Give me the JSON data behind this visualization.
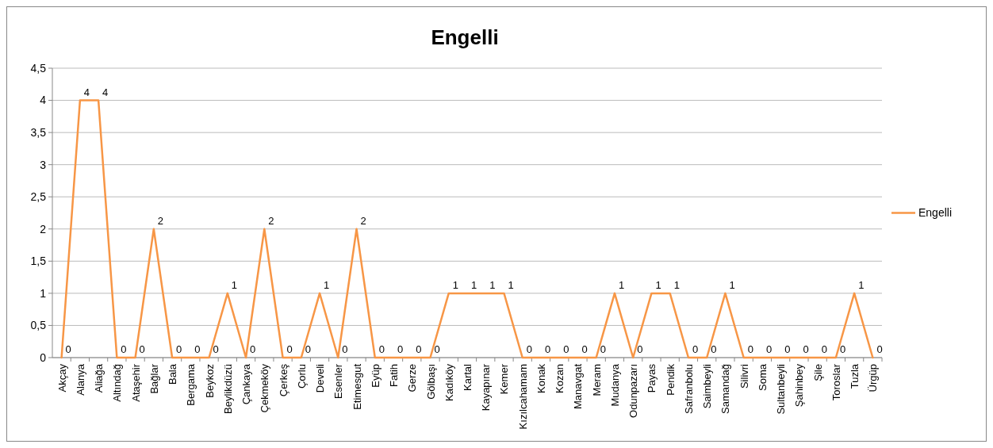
{
  "chart_data": {
    "type": "line",
    "title": "Engelli",
    "categories": [
      "Akçay",
      "Alanya",
      "Aliağa",
      "Altındağ",
      "Ataşehir",
      "Bağlar",
      "Bala",
      "Bergama",
      "Beykoz",
      "Beylikdüzü",
      "Çankaya",
      "Çekmeköy",
      "Çerkeş",
      "Çorlu",
      "Develi",
      "Esenler",
      "Etimesgut",
      "Eyüp",
      "Fatih",
      "Gerze",
      "Gölbaşı",
      "Kadıköy",
      "Kartal",
      "Kayapınar",
      "Kemer",
      "Kızılcahamam",
      "Konak",
      "Kozan",
      "Manavgat",
      "Meram",
      "Mudanya",
      "Odunpazarı",
      "Payas",
      "Pendik",
      "Safranbolu",
      "Saimbeyli",
      "Samandağ",
      "Silivri",
      "Soma",
      "Sultanbeyli",
      "Şahinbey",
      "Şile",
      "Toroslar",
      "Tuzla",
      "Ürgüp"
    ],
    "series": [
      {
        "name": "Engelli",
        "color": "#f79646",
        "values": [
          0,
          4,
          4,
          0,
          0,
          2,
          0,
          0,
          0,
          1,
          0,
          2,
          0,
          0,
          1,
          0,
          2,
          0,
          0,
          0,
          0,
          1,
          1,
          1,
          1,
          0,
          0,
          0,
          0,
          0,
          1,
          0,
          1,
          1,
          0,
          0,
          1,
          0,
          0,
          0,
          0,
          0,
          0,
          1,
          0
        ]
      }
    ],
    "ylim": [
      0,
      4.5
    ],
    "yticks": [
      0,
      {
        "value": 0.5,
        "label": "0,5"
      },
      1,
      {
        "value": 1.5,
        "label": "1,5"
      },
      2,
      {
        "value": 2.5,
        "label": "2,5"
      },
      3,
      {
        "value": 3.5,
        "label": "3,5"
      },
      4,
      {
        "value": 4.5,
        "label": "4,5"
      }
    ],
    "grid": "y",
    "legend": "right",
    "marker": "none",
    "line_style": "solid",
    "data_labels": true
  }
}
